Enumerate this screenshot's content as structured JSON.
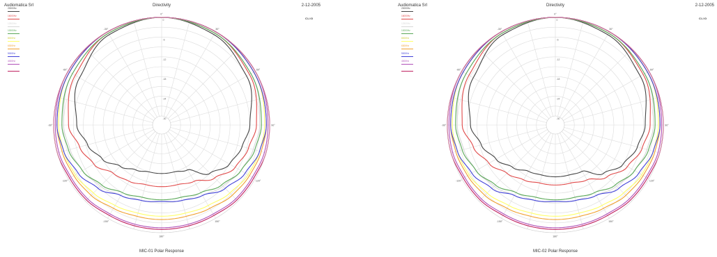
{
  "chart_data": [
    {
      "type": "polar-line",
      "company": "Audiomatica Srl",
      "title": "Directivity",
      "date": "2-12-2005",
      "logo_text": "CLIO",
      "caption": "MIC-01 Polar Response",
      "r_ticks": [
        "0",
        "-6",
        "-12",
        "-18",
        "-24",
        "-30"
      ],
      "angle_ticks": [
        "0°",
        "30°",
        "60°",
        "90°",
        "120°",
        "150°",
        "180°",
        "-150°",
        "-120°",
        "-90°",
        "-60°",
        "-30°"
      ],
      "grid": true,
      "legend_position": "top-left",
      "angles_deg": [
        0,
        30,
        60,
        90,
        105,
        120,
        135,
        150,
        165,
        180,
        195,
        210,
        225,
        240,
        255,
        270,
        300,
        330
      ],
      "series": [
        {
          "name": "20000Hz",
          "color": "#444444",
          "values": [
            0,
            -1,
            -3,
            -6,
            -7.5,
            -9,
            -12,
            -17,
            -18,
            -18,
            -18,
            -17,
            -15,
            -12,
            -9.5,
            -7,
            -4,
            -1
          ]
        },
        {
          "name": "16000Hz",
          "color": "#e04848",
          "values": [
            0,
            -0.5,
            -2,
            -4,
            -5.5,
            -7,
            -10,
            -13,
            -14,
            -14,
            -14,
            -13,
            -12,
            -9,
            -7,
            -4.5,
            -2.5,
            -0.5
          ]
        },
        {
          "name": "12500Hz",
          "color": "#d8d8d8",
          "values": [
            0,
            -0.5,
            -1.5,
            -3,
            -4,
            -5,
            -6.5,
            -8,
            -9,
            -9.5,
            -9,
            -8,
            -6.5,
            -5,
            -4,
            -3,
            -1.5,
            -0.5
          ]
        },
        {
          "name": "10000Hz",
          "color": "#5aa858",
          "values": [
            0,
            -0.5,
            -1.5,
            -2.5,
            -3.5,
            -5,
            -7,
            -9,
            -10,
            -10,
            -10,
            -9,
            -7,
            -5,
            -3.5,
            -2.5,
            -1.5,
            -0.5
          ]
        },
        {
          "name": "8000Hz",
          "color": "#ffff66",
          "values": [
            0,
            0,
            -0.5,
            -1.5,
            -2,
            -2.5,
            -3.5,
            -4.5,
            -5,
            -5,
            -5,
            -4.5,
            -3.5,
            -2.5,
            -2,
            -1.5,
            -0.5,
            0
          ]
        },
        {
          "name": "6300Hz",
          "color": "#f0a030",
          "values": [
            0,
            0,
            -0.5,
            -1,
            -1.5,
            -2,
            -2.5,
            -3.5,
            -4,
            -4,
            -4,
            -3.5,
            -2.5,
            -2,
            -1.5,
            -1,
            -0.5,
            0
          ]
        },
        {
          "name": "5000Hz",
          "color": "#4040d8",
          "values": [
            0,
            0,
            -0.5,
            -1,
            -2,
            -3.5,
            -5.5,
            -8,
            -9,
            -9.5,
            -9,
            -8,
            -5.5,
            -3.5,
            -2,
            -1,
            -0.5,
            0
          ]
        },
        {
          "name": "4000Hz",
          "color": "#b050b8",
          "values": [
            0,
            0,
            0,
            -0.5,
            -0.5,
            -1,
            -1,
            -1.5,
            -1.5,
            -1.5,
            -1.5,
            -1.5,
            -1,
            -1,
            -0.5,
            -0.5,
            0,
            0
          ]
        },
        {
          "name": "",
          "color": "#c02060",
          "values": [
            0,
            0,
            0,
            0,
            0,
            -0.5,
            -0.5,
            -1,
            -1,
            -1,
            -1,
            -1,
            -0.5,
            -0.5,
            0,
            0,
            0,
            0
          ]
        }
      ]
    },
    {
      "type": "polar-line",
      "company": "Audiomatica Srl",
      "title": "Directivity",
      "date": "2-12-2005",
      "logo_text": "CLIO",
      "caption": "MIC-02 Polar Response",
      "r_ticks": [
        "0",
        "-6",
        "-12",
        "-18",
        "-24",
        "-30"
      ],
      "angle_ticks": [
        "0°",
        "30°",
        "60°",
        "90°",
        "120°",
        "150°",
        "180°",
        "-150°",
        "-120°",
        "-90°",
        "-60°",
        "-30°"
      ],
      "grid": true,
      "legend_position": "top-left",
      "angles_deg": [
        0,
        30,
        60,
        90,
        105,
        120,
        135,
        150,
        165,
        180,
        195,
        210,
        225,
        240,
        255,
        270,
        300,
        330
      ],
      "series": [
        {
          "name": "20000Hz",
          "color": "#444444",
          "values": [
            0,
            -1,
            -3,
            -5.5,
            -7,
            -9,
            -12,
            -16.5,
            -17,
            -17,
            -17,
            -16.5,
            -14.5,
            -12,
            -9.5,
            -7,
            -4,
            -1
          ]
        },
        {
          "name": "16000Hz",
          "color": "#e04848",
          "values": [
            0,
            -0.5,
            -2,
            -4,
            -5.5,
            -7.5,
            -10.5,
            -13.5,
            -14.5,
            -14.5,
            -14.5,
            -13.5,
            -12,
            -9.5,
            -7,
            -4.5,
            -2.5,
            -0.5
          ]
        },
        {
          "name": "12500Hz",
          "color": "#d8d8d8",
          "values": [
            0,
            -0.5,
            -1.5,
            -3,
            -4,
            -5,
            -6.5,
            -8,
            -9,
            -9.5,
            -9,
            -8,
            -6.5,
            -5,
            -4,
            -3,
            -1.5,
            -0.5
          ]
        },
        {
          "name": "10000Hz",
          "color": "#5aa858",
          "values": [
            0,
            -0.5,
            -1.5,
            -2.5,
            -3.5,
            -5,
            -7,
            -9,
            -10,
            -10,
            -10,
            -9,
            -7,
            -5,
            -3.5,
            -2.5,
            -1.5,
            -0.5
          ]
        },
        {
          "name": "8000Hz",
          "color": "#ffff66",
          "values": [
            0,
            0,
            -0.5,
            -1.5,
            -2,
            -2.5,
            -3.5,
            -4.5,
            -5,
            -5,
            -5,
            -4.5,
            -3.5,
            -2.5,
            -2,
            -1.5,
            -0.5,
            0
          ]
        },
        {
          "name": "6300Hz",
          "color": "#f0a030",
          "values": [
            0,
            0,
            -0.5,
            -1,
            -1.5,
            -2,
            -2.5,
            -3.5,
            -4,
            -4,
            -4,
            -3.5,
            -2.5,
            -2,
            -1.5,
            -1,
            -0.5,
            0
          ]
        },
        {
          "name": "5000Hz",
          "color": "#4040d8",
          "values": [
            0,
            0,
            -0.5,
            -1,
            -2,
            -3.5,
            -5.5,
            -8,
            -9,
            -9.5,
            -9,
            -8,
            -5.5,
            -3.5,
            -2,
            -1,
            -0.5,
            0
          ]
        },
        {
          "name": "4000Hz",
          "color": "#b050b8",
          "values": [
            0,
            0,
            0,
            -0.5,
            -0.5,
            -1,
            -1,
            -1.5,
            -1.5,
            -1.5,
            -1.5,
            -1.5,
            -1,
            -1,
            -0.5,
            -0.5,
            0,
            0
          ]
        },
        {
          "name": "",
          "color": "#c02060",
          "values": [
            0,
            0,
            0,
            0,
            0,
            -0.5,
            -0.5,
            -1,
            -1,
            -1,
            -1,
            -1,
            -0.5,
            -0.5,
            0,
            0,
            0,
            0
          ]
        }
      ]
    }
  ]
}
